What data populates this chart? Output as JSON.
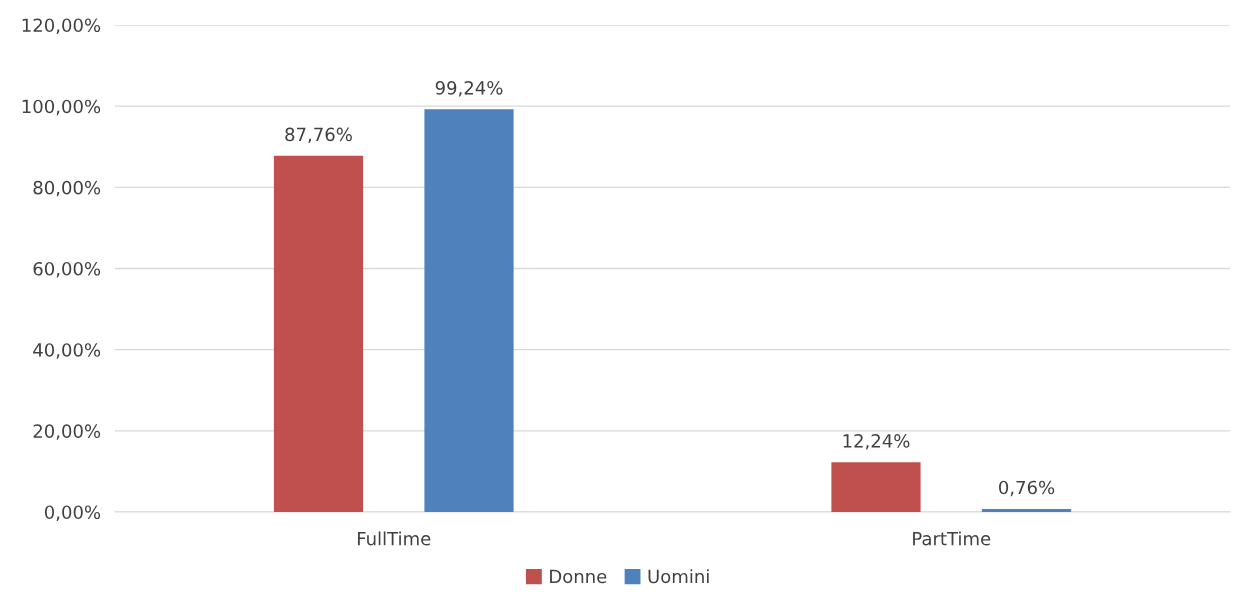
{
  "chart_data": {
    "type": "bar",
    "categories": [
      "FullTime",
      "PartTime"
    ],
    "series": [
      {
        "name": "Donne",
        "color": "#c0504d",
        "values": [
          87.76,
          12.24
        ],
        "value_labels": [
          "87,76%",
          "12,24%"
        ]
      },
      {
        "name": "Uomini",
        "color": "#4f81bd",
        "values": [
          99.24,
          0.76
        ],
        "value_labels": [
          "99,24%",
          "0,76%"
        ]
      }
    ],
    "ylim": [
      0,
      120
    ],
    "yticks": [
      {
        "value": 0,
        "label": "0,00%"
      },
      {
        "value": 20,
        "label": "20,00%"
      },
      {
        "value": 40,
        "label": "40,00%"
      },
      {
        "value": 60,
        "label": "60,00%"
      },
      {
        "value": 80,
        "label": "80,00%"
      },
      {
        "value": 100,
        "label": "100,00%"
      },
      {
        "value": 120,
        "label": "120,00%"
      }
    ],
    "grid": "y",
    "legend": "bottom"
  }
}
